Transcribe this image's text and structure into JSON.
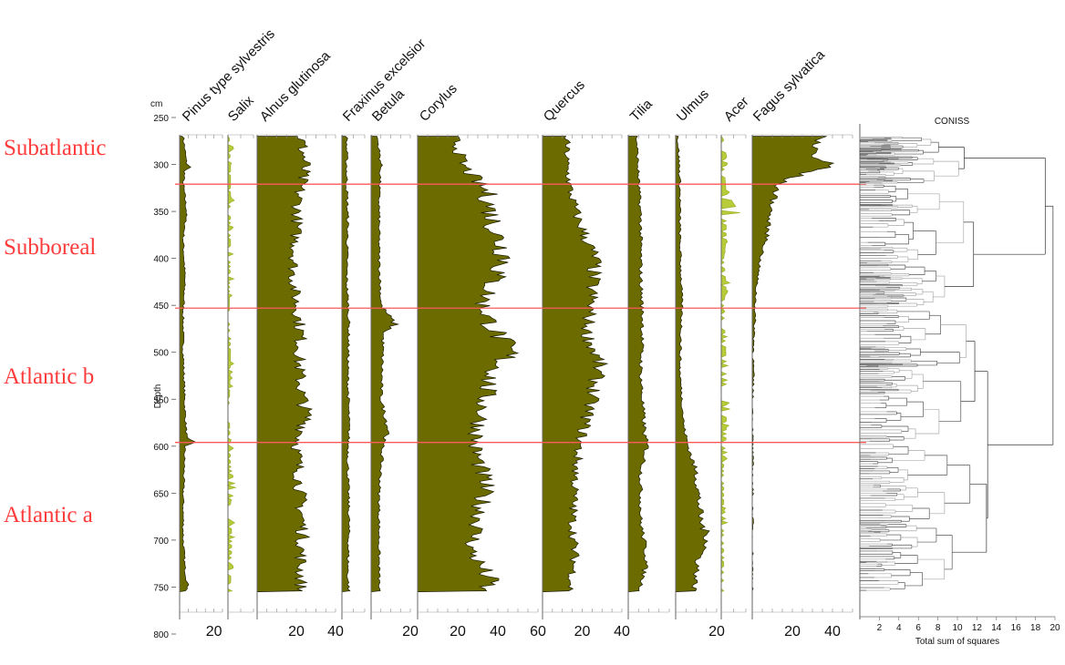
{
  "chart_data": {
    "type": "area",
    "depth_axis": {
      "unit": "cm",
      "label": "Depth",
      "range": [
        250,
        800
      ],
      "ticks": [
        250,
        300,
        350,
        400,
        450,
        500,
        550,
        600,
        650,
        700,
        750,
        800
      ]
    },
    "zones": [
      {
        "name": "Subatlantic",
        "top": 270,
        "bottom": 321
      },
      {
        "name": "Subboreal",
        "top": 321,
        "bottom": 453
      },
      {
        "name": "Atlantic b",
        "top": 453,
        "bottom": 596
      },
      {
        "name": "Atlantic a",
        "top": 596,
        "bottom": 755
      }
    ],
    "boundaries": [
      321,
      453,
      596
    ],
    "taxa": [
      {
        "name": "Pinus type sylvestris",
        "max": 25,
        "ticks": [
          20
        ],
        "tick_labels": [
          "20"
        ],
        "color": "#6b6b00",
        "profile": [
          [
            270,
            2
          ],
          [
            300,
            4
          ],
          [
            302,
            7
          ],
          [
            306,
            3
          ],
          [
            320,
            2
          ],
          [
            350,
            4
          ],
          [
            380,
            2
          ],
          [
            420,
            3
          ],
          [
            460,
            2
          ],
          [
            500,
            2
          ],
          [
            560,
            3
          ],
          [
            592,
            4
          ],
          [
            596,
            9
          ],
          [
            600,
            3
          ],
          [
            650,
            2
          ],
          [
            700,
            2
          ],
          [
            730,
            3
          ],
          [
            752,
            5
          ],
          [
            755,
            3
          ]
        ]
      },
      {
        "name": "Salix",
        "max": 10,
        "ticks": [],
        "tick_labels": [],
        "color": "#b8cc3a",
        "profile": [
          [
            270,
            0.5
          ],
          [
            300,
            1
          ],
          [
            330,
            1
          ],
          [
            400,
            1
          ],
          [
            450,
            0.5
          ],
          [
            500,
            1
          ],
          [
            560,
            0.5
          ],
          [
            620,
            1
          ],
          [
            645,
            3
          ],
          [
            660,
            1
          ],
          [
            700,
            1.5
          ],
          [
            750,
            1
          ]
        ]
      },
      {
        "name": "Alnus glutinosa",
        "max": 40,
        "ticks": [
          20,
          40
        ],
        "tick_labels": [
          "20",
          "40"
        ],
        "color": "#6b6b00",
        "profile": [
          [
            270,
            22
          ],
          [
            300,
            24
          ],
          [
            330,
            21
          ],
          [
            360,
            20
          ],
          [
            390,
            19
          ],
          [
            420,
            18
          ],
          [
            450,
            20
          ],
          [
            480,
            22
          ],
          [
            510,
            21
          ],
          [
            540,
            22
          ],
          [
            570,
            25
          ],
          [
            600,
            20
          ],
          [
            630,
            21
          ],
          [
            660,
            22
          ],
          [
            690,
            23
          ],
          [
            720,
            22
          ],
          [
            750,
            22
          ]
        ]
      },
      {
        "name": "Fraxinus excelsior",
        "max": 10,
        "ticks": [],
        "tick_labels": [],
        "color": "#6b6b00",
        "profile": [
          [
            270,
            2
          ],
          [
            320,
            2
          ],
          [
            360,
            2.5
          ],
          [
            420,
            2
          ],
          [
            470,
            3
          ],
          [
            520,
            2.5
          ],
          [
            580,
            3
          ],
          [
            620,
            2.5
          ],
          [
            680,
            3
          ],
          [
            740,
            2.5
          ],
          [
            755,
            3
          ]
        ]
      },
      {
        "name": "Betula",
        "max": 20,
        "ticks": [
          20
        ],
        "tick_labels": [
          "20"
        ],
        "color": "#6b6b00",
        "profile": [
          [
            270,
            3
          ],
          [
            300,
            5
          ],
          [
            330,
            4
          ],
          [
            400,
            4
          ],
          [
            450,
            5
          ],
          [
            470,
            12
          ],
          [
            480,
            6
          ],
          [
            550,
            5
          ],
          [
            585,
            9
          ],
          [
            595,
            6
          ],
          [
            650,
            4
          ],
          [
            700,
            4
          ],
          [
            750,
            4
          ]
        ]
      },
      {
        "name": "Corylus",
        "max": 60,
        "ticks": [
          20,
          40,
          60
        ],
        "tick_labels": [
          "20",
          "40",
          "60"
        ],
        "color": "#6b6b00",
        "profile": [
          [
            270,
            18
          ],
          [
            300,
            22
          ],
          [
            330,
            34
          ],
          [
            370,
            38
          ],
          [
            400,
            44
          ],
          [
            420,
            38
          ],
          [
            450,
            32
          ],
          [
            470,
            36
          ],
          [
            500,
            45
          ],
          [
            530,
            35
          ],
          [
            560,
            32
          ],
          [
            600,
            28
          ],
          [
            640,
            33
          ],
          [
            680,
            30
          ],
          [
            710,
            26
          ],
          [
            745,
            36
          ],
          [
            755,
            30
          ]
        ]
      },
      {
        "name": "Quercus",
        "max": 40,
        "ticks": [
          20,
          40
        ],
        "tick_labels": [
          "20",
          "40"
        ],
        "color": "#6b6b00",
        "profile": [
          [
            270,
            12
          ],
          [
            300,
            12
          ],
          [
            330,
            14
          ],
          [
            360,
            18
          ],
          [
            400,
            26
          ],
          [
            450,
            24
          ],
          [
            480,
            22
          ],
          [
            510,
            28
          ],
          [
            535,
            26
          ],
          [
            570,
            22
          ],
          [
            600,
            18
          ],
          [
            640,
            16
          ],
          [
            680,
            15
          ],
          [
            720,
            16
          ],
          [
            750,
            14
          ]
        ]
      },
      {
        "name": "Tilia",
        "max": 20,
        "ticks": [],
        "tick_labels": [],
        "color": "#6b6b00",
        "profile": [
          [
            270,
            4
          ],
          [
            320,
            5
          ],
          [
            360,
            6
          ],
          [
            420,
            6
          ],
          [
            470,
            7
          ],
          [
            520,
            6
          ],
          [
            560,
            7
          ],
          [
            590,
            8
          ],
          [
            600,
            9
          ],
          [
            630,
            6
          ],
          [
            680,
            6
          ],
          [
            720,
            9
          ],
          [
            750,
            6
          ]
        ]
      },
      {
        "name": "Ulmus",
        "max": 20,
        "ticks": [
          20
        ],
        "tick_labels": [
          "20"
        ],
        "color": "#6b6b00",
        "profile": [
          [
            270,
            1
          ],
          [
            320,
            2
          ],
          [
            380,
            2
          ],
          [
            450,
            3
          ],
          [
            520,
            2
          ],
          [
            580,
            4
          ],
          [
            600,
            6
          ],
          [
            630,
            10
          ],
          [
            680,
            12
          ],
          [
            700,
            16
          ],
          [
            720,
            11
          ],
          [
            750,
            9
          ]
        ]
      },
      {
        "name": "Acer",
        "max": 10,
        "ticks": [],
        "tick_labels": [],
        "color": "#b8cc3a",
        "profile": [
          [
            270,
            0.5
          ],
          [
            290,
            2
          ],
          [
            300,
            1
          ],
          [
            330,
            2
          ],
          [
            353,
            8
          ],
          [
            360,
            2
          ],
          [
            380,
            2
          ],
          [
            400,
            1
          ],
          [
            430,
            2
          ],
          [
            450,
            1
          ],
          [
            510,
            2
          ],
          [
            550,
            2
          ],
          [
            590,
            2
          ],
          [
            620,
            1
          ],
          [
            680,
            1
          ],
          [
            710,
            1
          ],
          [
            745,
            1
          ]
        ]
      },
      {
        "name": "Fagus sylvatica",
        "max": 50,
        "ticks": [
          20,
          40
        ],
        "tick_labels": [
          "20",
          "40"
        ],
        "color": "#6b6b00",
        "profile": [
          [
            270,
            32
          ],
          [
            290,
            30
          ],
          [
            302,
            38
          ],
          [
            310,
            24
          ],
          [
            320,
            13
          ],
          [
            340,
            10
          ],
          [
            360,
            8
          ],
          [
            380,
            7
          ],
          [
            400,
            4
          ],
          [
            430,
            2
          ],
          [
            450,
            1.5
          ],
          [
            500,
            0.5
          ],
          [
            540,
            0.3
          ],
          [
            545,
            0
          ]
        ]
      }
    ],
    "coniss": {
      "label": "CONISS",
      "xlabel": "Total sum of squares",
      "range": [
        0,
        20
      ],
      "ticks": [
        2,
        4,
        6,
        8,
        10,
        12,
        14,
        16,
        18,
        20
      ]
    }
  }
}
